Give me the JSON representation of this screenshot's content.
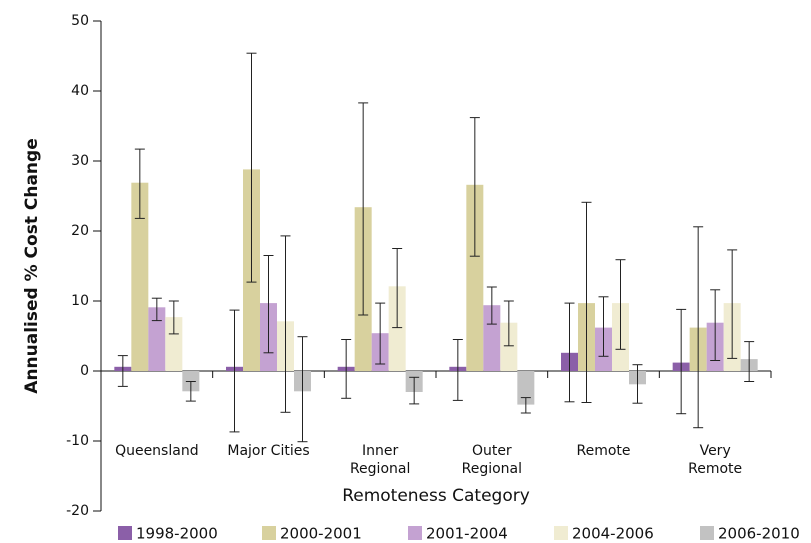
{
  "chart_data": {
    "type": "bar",
    "y_label": "Annualised % Cost Change",
    "x_label": "Remoteness Category",
    "categories": [
      "Queensland",
      "Major Cities",
      "Inner Regional",
      "Outer Regional",
      "Remote",
      "Very Remote"
    ],
    "series": [
      {
        "name": "1998-2000",
        "color": "#8b5fa8",
        "values": [
          0.6,
          0.6,
          0.6,
          0.6,
          2.6,
          1.2
        ],
        "lower": [
          -2.2,
          -8.7,
          -3.9,
          -4.2,
          -4.4,
          -6.1
        ],
        "upper": [
          2.2,
          8.7,
          4.5,
          4.5,
          9.7,
          8.8
        ]
      },
      {
        "name": "2000-2001",
        "color": "#d8d19e",
        "values": [
          26.9,
          28.8,
          23.4,
          26.6,
          9.7,
          6.2
        ],
        "lower": [
          21.8,
          12.7,
          8.0,
          16.4,
          -4.5,
          -8.1
        ],
        "upper": [
          31.7,
          45.4,
          38.3,
          36.2,
          24.1,
          20.6
        ]
      },
      {
        "name": "2001-2004",
        "color": "#c4a2d2",
        "values": [
          9.1,
          9.7,
          5.4,
          9.4,
          6.2,
          6.9
        ],
        "lower": [
          7.2,
          2.6,
          1.0,
          6.7,
          2.1,
          1.5
        ],
        "upper": [
          10.4,
          16.5,
          9.7,
          12.0,
          10.6,
          11.6
        ]
      },
      {
        "name": "2004-2006",
        "color": "#f0ecd2",
        "values": [
          7.7,
          7.1,
          12.1,
          6.9,
          9.7,
          9.7
        ],
        "lower": [
          5.3,
          -5.9,
          6.2,
          3.6,
          3.1,
          1.8
        ],
        "upper": [
          10.0,
          19.3,
          17.5,
          10.0,
          15.9,
          17.3
        ]
      },
      {
        "name": "2006-2010",
        "color": "#c2c2c2",
        "values": [
          -2.9,
          -2.9,
          -3.0,
          -4.8,
          -1.9,
          1.7
        ],
        "lower": [
          -4.3,
          -10.1,
          -4.7,
          -6.0,
          -4.6,
          -1.5
        ],
        "upper": [
          -1.5,
          4.9,
          -0.9,
          -3.8,
          0.9,
          4.2
        ]
      }
    ],
    "ylim": [
      -20,
      50
    ],
    "yticks": [
      -20,
      -10,
      0,
      10,
      20,
      30,
      40,
      50
    ],
    "legend": "bottom"
  }
}
